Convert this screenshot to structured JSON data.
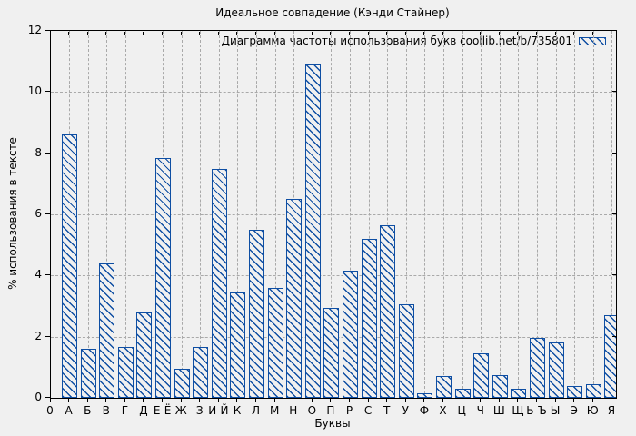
{
  "chart_data": {
    "type": "bar",
    "title": "Идеальное совпадение (Кэнди Стайнер)",
    "legend": "Диаграмма частоты использования букв coollib.net/b/735801",
    "legend_position": "top-right",
    "xlabel": "Буквы",
    "ylabel": "% использования в тексте",
    "origin_label": "0",
    "categories": [
      "А",
      "Б",
      "В",
      "Г",
      "Д",
      "Е-Ё",
      "Ж",
      "З",
      "И-Й",
      "К",
      "Л",
      "М",
      "Н",
      "О",
      "П",
      "Р",
      "С",
      "Т",
      "У",
      "Ф",
      "Х",
      "Ц",
      "Ч",
      "Ш",
      "Щ",
      "Ь-Ъ",
      "Ы",
      "Э",
      "Ю",
      "Я"
    ],
    "values": [
      8.6,
      1.6,
      4.4,
      1.65,
      2.8,
      7.85,
      0.95,
      1.65,
      7.5,
      3.45,
      5.5,
      3.6,
      6.5,
      10.9,
      2.95,
      4.15,
      5.2,
      5.65,
      3.05,
      0.15,
      0.7,
      0.3,
      1.45,
      0.75,
      0.3,
      1.95,
      1.8,
      0.4,
      0.45,
      2.7
    ],
    "y_ticks": [
      0,
      2,
      4,
      6,
      8,
      10,
      12
    ],
    "ylim": [
      0,
      12
    ],
    "grid": true,
    "bar_style": "diagonal-hatch",
    "colors": {
      "bar": "#0e4ea3",
      "background": "#f0f0f0",
      "grid": "#a9a9a9",
      "border": "#000000",
      "text": "#000000"
    }
  }
}
